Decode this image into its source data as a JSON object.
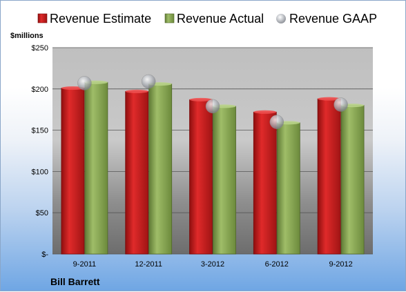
{
  "chart_data": {
    "type": "bar",
    "unit_label": "$millions",
    "company": "Bill Barrett",
    "categories": [
      "9-2011",
      "12-2011",
      "3-2012",
      "6-2012",
      "9-2012"
    ],
    "series": [
      {
        "name": "Revenue Estimate",
        "values": [
          201,
          197,
          187,
          172,
          188
        ],
        "color": "#d01f1f"
      },
      {
        "name": "Revenue Actual",
        "values": [
          208,
          206,
          179,
          159,
          180
        ],
        "color": "#8fae5a"
      }
    ],
    "markers": {
      "name": "Revenue GAAP",
      "values": [
        207,
        209,
        179,
        160,
        181
      ],
      "color": "#b8bcc4"
    },
    "y_ticks": [
      "$-",
      "$50",
      "$100",
      "$150",
      "$200",
      "$250"
    ],
    "ylim": [
      0,
      250
    ],
    "grid": true,
    "legend": "top"
  }
}
